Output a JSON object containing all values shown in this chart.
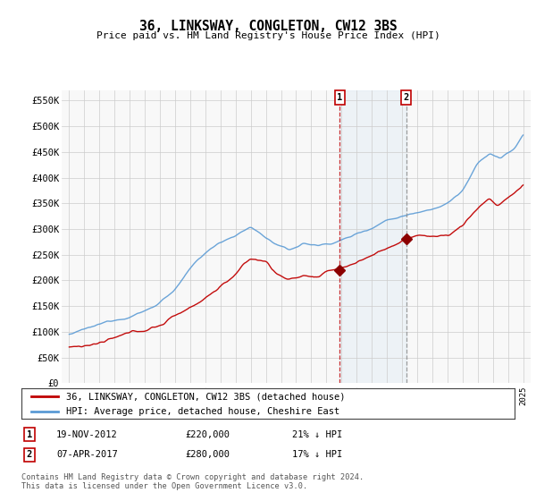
{
  "title": "36, LINKSWAY, CONGLETON, CW12 3BS",
  "subtitle": "Price paid vs. HM Land Registry's House Price Index (HPI)",
  "ylabel_ticks": [
    "£0",
    "£50K",
    "£100K",
    "£150K",
    "£200K",
    "£250K",
    "£300K",
    "£350K",
    "£400K",
    "£450K",
    "£500K",
    "£550K"
  ],
  "ytick_values": [
    0,
    50000,
    100000,
    150000,
    200000,
    250000,
    300000,
    350000,
    400000,
    450000,
    500000,
    550000
  ],
  "ylim": [
    0,
    570000
  ],
  "xlim_start": 1994.5,
  "xlim_end": 2025.5,
  "legend_line1": "36, LINKSWAY, CONGLETON, CW12 3BS (detached house)",
  "legend_line2": "HPI: Average price, detached house, Cheshire East",
  "sale1_label": "1",
  "sale1_date": "19-NOV-2012",
  "sale1_price": "£220,000",
  "sale1_hpi": "21% ↓ HPI",
  "sale1_year": 2012.89,
  "sale1_value": 220000,
  "sale2_label": "2",
  "sale2_date": "07-APR-2017",
  "sale2_price": "£280,000",
  "sale2_hpi": "17% ↓ HPI",
  "sale2_year": 2017.27,
  "sale2_value": 280000,
  "footer": "Contains HM Land Registry data © Crown copyright and database right 2024.\nThis data is licensed under the Open Government Licence v3.0.",
  "hpi_color": "#5b9bd5",
  "price_color": "#c00000",
  "marker_color": "#8b0000",
  "shade_color": "#dae8f5",
  "vline1_color": "#c00000",
  "vline2_color": "#888888",
  "grid_color": "#cccccc",
  "bg_color": "#f8f8f8"
}
